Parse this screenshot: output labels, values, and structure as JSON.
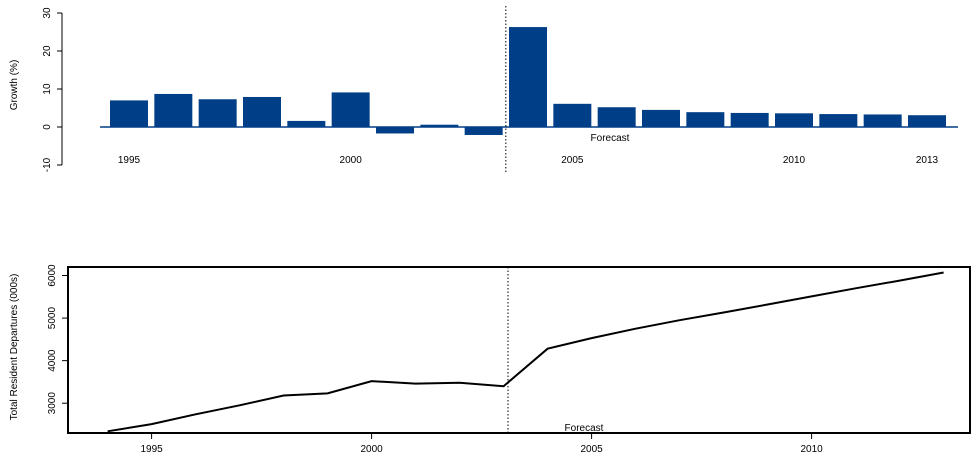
{
  "chart_data": [
    {
      "type": "bar",
      "title": "",
      "xlabel": "",
      "ylabel": "Growth (%)",
      "ylim": [
        -10,
        30
      ],
      "yticks": [
        -10,
        0,
        10,
        20,
        30
      ],
      "x": [
        1995,
        1996,
        1997,
        1998,
        1999,
        2000,
        2001,
        2002,
        2003,
        2004,
        2005,
        2006,
        2007,
        2008,
        2009,
        2010,
        2011,
        2012,
        2013
      ],
      "values": [
        7.0,
        8.7,
        7.3,
        7.9,
        1.6,
        9.1,
        -1.7,
        0.6,
        -2.1,
        26.3,
        6.1,
        5.2,
        4.5,
        3.9,
        3.7,
        3.6,
        3.4,
        3.3,
        3.1
      ],
      "xtick_labels": [
        "1995",
        "2000",
        "2005",
        "2010",
        "2013"
      ],
      "xtick_positions": [
        1995,
        2000,
        2005,
        2010,
        2013
      ],
      "forecast_start": 2003.5,
      "annotation": "Forecast",
      "bar_color": "#003f87",
      "grid": false
    },
    {
      "type": "line",
      "title": "",
      "xlabel": "",
      "ylabel": "Total Resident Departures (000s)",
      "ylim": [
        2300,
        6200
      ],
      "yticks": [
        3000,
        4000,
        5000,
        6000
      ],
      "x": [
        1994,
        1995,
        1996,
        1997,
        1998,
        1999,
        2000,
        2001,
        2002,
        2003,
        2004,
        2005,
        2006,
        2007,
        2008,
        2009,
        2010,
        2011,
        2012,
        2013
      ],
      "values": [
        2340,
        2510,
        2740,
        2950,
        3180,
        3230,
        3520,
        3460,
        3480,
        3400,
        4280,
        4530,
        4750,
        4950,
        5130,
        5320,
        5510,
        5700,
        5880,
        6070
      ],
      "xtick_labels": [
        "1995",
        "2000",
        "2005",
        "2010"
      ],
      "xtick_positions": [
        1995,
        2000,
        2005,
        2010
      ],
      "xlim": [
        1993.1,
        2013.6
      ],
      "forecast_start": 2003.1,
      "annotation": "Forecast",
      "line_color": "#000000",
      "grid": false
    }
  ]
}
